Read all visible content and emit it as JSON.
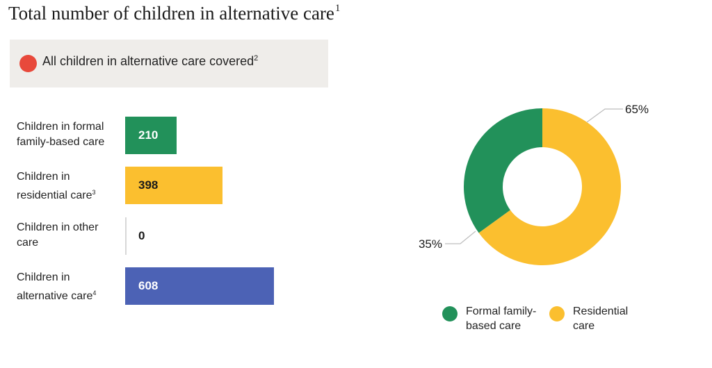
{
  "title": "Total number of children in alternative care",
  "title_footnote": "1",
  "coverage": {
    "label": "All children in alternative care covered",
    "footnote": "2",
    "color": "#e8493b"
  },
  "rows": [
    {
      "line1": "Children in formal",
      "line2": "family-based care",
      "footnote": "",
      "value": 210,
      "value_label": "210",
      "color": "#22915a",
      "text_color": "#ffffff"
    },
    {
      "line1": "Children in",
      "line2": "residential care",
      "footnote": "3",
      "value": 398,
      "value_label": "398",
      "color": "#fbbf2f",
      "text_color": "#1a1a1a"
    },
    {
      "line1": "Children in other",
      "line2": "care",
      "footnote": "",
      "value": 0,
      "value_label": "0",
      "color": "#d8d8d8",
      "text_color": "#1a1a1a"
    },
    {
      "line1": "Children in",
      "line2": "alternative care",
      "footnote": "4",
      "value": 608,
      "value_label": "608",
      "color": "#4c62b5",
      "text_color": "#ffffff"
    }
  ],
  "chart_data": [
    {
      "type": "bar",
      "orientation": "horizontal",
      "categories": [
        "Children in formal family-based care",
        "Children in residential care",
        "Children in other care",
        "Children in alternative care"
      ],
      "values": [
        210,
        398,
        0,
        608
      ]
    },
    {
      "type": "pie",
      "donut": true,
      "labels": [
        "Formal family-based care",
        "Residential care"
      ],
      "values": [
        35,
        65
      ],
      "value_labels": [
        "35%",
        "65%"
      ],
      "colors": [
        "#22915a",
        "#fbbf2f"
      ],
      "legend": [
        {
          "line1": "Formal family-",
          "line2": "based care"
        },
        {
          "line1": "Residential",
          "line2": "care"
        }
      ],
      "legend_position": "bottom"
    }
  ]
}
